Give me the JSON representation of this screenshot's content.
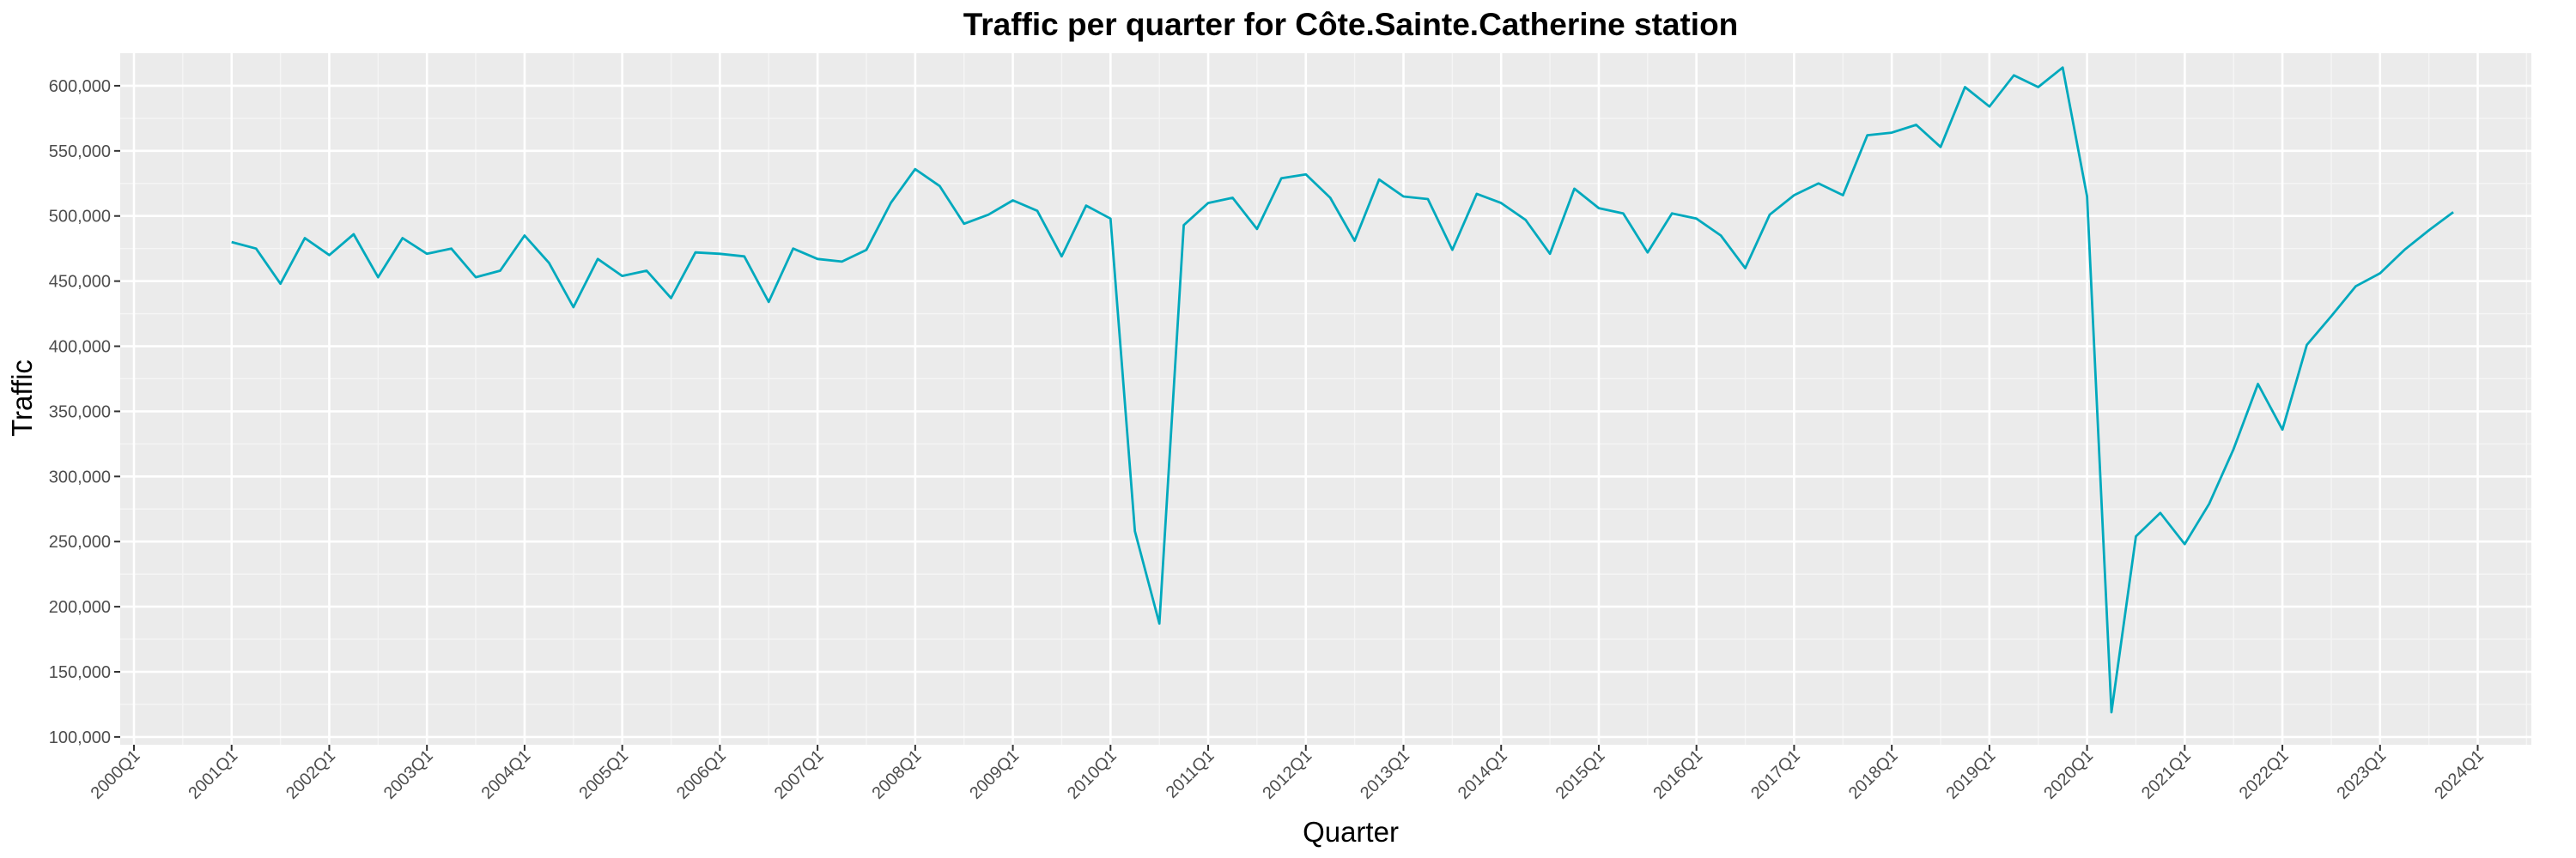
{
  "chart_data": {
    "type": "line",
    "title": "Traffic per quarter for Côte.Sainte.Catherine station",
    "xlabel": "Quarter",
    "ylabel": "Traffic",
    "ylim": [
      94000,
      625000
    ],
    "y_ticks": [
      100000,
      150000,
      200000,
      250000,
      300000,
      350000,
      400000,
      450000,
      500000,
      550000,
      600000
    ],
    "y_tick_labels": [
      "100,000",
      "150,000",
      "200,000",
      "250,000",
      "300,000",
      "350,000",
      "400,000",
      "450,000",
      "500,000",
      "550,000",
      "600,000"
    ],
    "x_tick_labels": [
      "2000Q1",
      "2001Q1",
      "2002Q1",
      "2003Q1",
      "2004Q1",
      "2005Q1",
      "2006Q1",
      "2007Q1",
      "2008Q1",
      "2009Q1",
      "2010Q1",
      "2011Q1",
      "2012Q1",
      "2013Q1",
      "2014Q1",
      "2015Q1",
      "2016Q1",
      "2017Q1",
      "2018Q1",
      "2019Q1",
      "2020Q1",
      "2021Q1",
      "2022Q1",
      "2023Q1",
      "2024Q1"
    ],
    "grid": true,
    "legend": "none",
    "series": [
      {
        "color": "#00a9bd",
        "x": [
          "2001Q1",
          "2001Q2",
          "2001Q3",
          "2001Q4",
          "2002Q1",
          "2002Q2",
          "2002Q3",
          "2002Q4",
          "2003Q1",
          "2003Q2",
          "2003Q3",
          "2003Q4",
          "2004Q1",
          "2004Q2",
          "2004Q3",
          "2004Q4",
          "2005Q1",
          "2005Q2",
          "2005Q3",
          "2005Q4",
          "2006Q1",
          "2006Q2",
          "2006Q3",
          "2006Q4",
          "2007Q1",
          "2007Q2",
          "2007Q3",
          "2007Q4",
          "2008Q1",
          "2008Q2",
          "2008Q3",
          "2008Q4",
          "2009Q1",
          "2009Q2",
          "2009Q3",
          "2009Q4",
          "2010Q1",
          "2010Q2",
          "2010Q3",
          "2010Q4",
          "2011Q1",
          "2011Q2",
          "2011Q3",
          "2011Q4",
          "2012Q1",
          "2012Q2",
          "2012Q3",
          "2012Q4",
          "2013Q1",
          "2013Q2",
          "2013Q3",
          "2013Q4",
          "2014Q1",
          "2014Q2",
          "2014Q3",
          "2014Q4",
          "2015Q1",
          "2015Q2",
          "2015Q3",
          "2015Q4",
          "2016Q1",
          "2016Q2",
          "2016Q3",
          "2016Q4",
          "2017Q1",
          "2017Q2",
          "2017Q3",
          "2017Q4",
          "2018Q1",
          "2018Q2",
          "2018Q3",
          "2018Q4",
          "2019Q1",
          "2019Q2",
          "2019Q3",
          "2019Q4",
          "2020Q1",
          "2020Q2",
          "2020Q3",
          "2020Q4",
          "2021Q1",
          "2021Q2",
          "2021Q3",
          "2021Q4",
          "2022Q1",
          "2022Q2",
          "2022Q3",
          "2022Q4",
          "2023Q1",
          "2023Q2",
          "2023Q3",
          "2023Q4"
        ],
        "values": [
          480000,
          475000,
          448000,
          483000,
          470000,
          486000,
          453000,
          483000,
          471000,
          475000,
          453000,
          458000,
          485000,
          464000,
          430000,
          467000,
          454000,
          458000,
          437000,
          472000,
          471000,
          469000,
          434000,
          475000,
          467000,
          465000,
          474000,
          510000,
          536000,
          523000,
          494000,
          501000,
          512000,
          504000,
          469000,
          508000,
          498000,
          258000,
          187000,
          493000,
          510000,
          514000,
          490000,
          529000,
          532000,
          514000,
          481000,
          528000,
          515000,
          513000,
          474000,
          517000,
          510000,
          497000,
          471000,
          521000,
          506000,
          502000,
          472000,
          502000,
          498000,
          485000,
          460000,
          501000,
          516000,
          525000,
          516000,
          562000,
          564000,
          570000,
          553000,
          599000,
          584000,
          608000,
          599000,
          614000,
          515000,
          119000,
          254000,
          272000,
          248000,
          279000,
          321000,
          371000,
          336000,
          401000,
          423000,
          446000,
          456000,
          474000,
          489000,
          503000
        ]
      }
    ]
  }
}
